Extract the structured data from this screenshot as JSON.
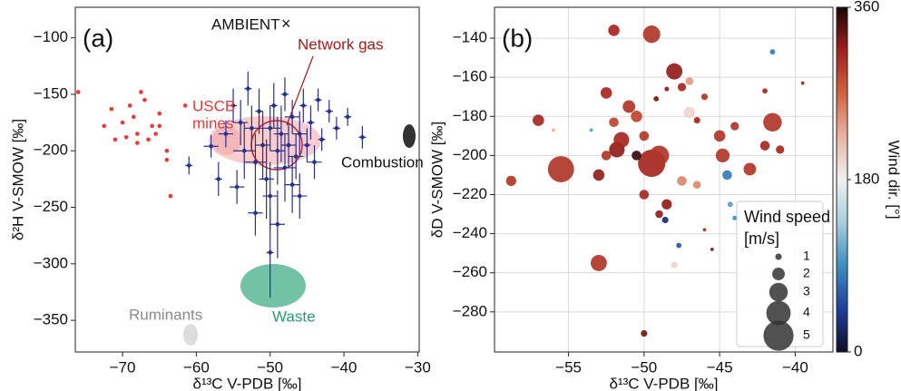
{
  "chart_data": [
    {
      "type": "scatter",
      "panel_label": "(a)",
      "xlabel": "δ¹³C V-PDB [‰]",
      "ylabel": "δ²H V-SMOW [‰]",
      "xlim": [
        -76.4,
        -29.8
      ],
      "ylim": [
        -378,
        -73
      ],
      "grid": false,
      "xticks": [
        {
          "value": -70,
          "label": "−70"
        },
        {
          "value": -60,
          "label": "−60"
        },
        {
          "value": -50,
          "label": "−50"
        },
        {
          "value": -40,
          "label": "−40"
        },
        {
          "value": -30,
          "label": "−30"
        }
      ],
      "yticks": [
        {
          "value": -100,
          "label": "−100"
        },
        {
          "value": -150,
          "label": "−150"
        },
        {
          "value": -200,
          "label": "−200"
        },
        {
          "value": -250,
          "label": "−250"
        },
        {
          "value": -300,
          "label": "−300"
        },
        {
          "value": -350,
          "label": "−350"
        }
      ],
      "legend_label": "AMBIENT",
      "annotations": [
        {
          "lines": [
            "Network gas"
          ],
          "color": "#a31b1b"
        },
        {
          "lines": [
            "USCB",
            "mines"
          ],
          "color": "#e8383a"
        },
        {
          "lines": [
            "Combustion"
          ],
          "color": "#111111"
        },
        {
          "lines": [
            "Waste"
          ],
          "color": "#2a9a70"
        },
        {
          "lines": [
            "Ruminants"
          ],
          "color": "#8a8a8a"
        }
      ],
      "series": [
        {
          "color": "#e8383a",
          "x": [
            -76,
            -72.5,
            -71.5,
            -71,
            -70,
            -69,
            -68.5,
            -68,
            -67.5,
            -67,
            -66.5,
            -66,
            -65,
            -65,
            -64,
            -64,
            -65.5,
            -63.5,
            -61.5,
            -69.5,
            -68
          ],
          "y": [
            -148,
            -178,
            -163,
            -190,
            -175,
            -160,
            -170,
            -185,
            -148,
            -155,
            -190,
            -178,
            -167,
            -178,
            -200,
            -208,
            -185,
            -240,
            -160,
            -188,
            -193
          ]
        },
        {
          "color": "#2b2f8c",
          "x": [
            -61,
            -58,
            -57,
            -56,
            -55,
            -54,
            -53.5,
            -53,
            -52.5,
            -52,
            -51.5,
            -51,
            -50.5,
            -50,
            -50,
            -49.5,
            -49,
            -49,
            -48.5,
            -48,
            -48,
            -47.5,
            -47,
            -47,
            -46.5,
            -46,
            -45.5,
            -45,
            -44.5,
            -44,
            -43.5,
            -43,
            -42,
            -41,
            -39.5,
            -37.5,
            -50,
            -54.5,
            -52,
            -46
          ],
          "y": [
            -213,
            -196,
            -225,
            -185,
            -160,
            -175,
            -200,
            -145,
            -180,
            -210,
            -165,
            -195,
            -225,
            -180,
            -240,
            -160,
            -200,
            -265,
            -185,
            -215,
            -150,
            -195,
            -170,
            -230,
            -205,
            -185,
            -160,
            -195,
            -175,
            -210,
            -155,
            -190,
            -165,
            -180,
            -170,
            -188,
            -290,
            -232,
            -255,
            -240
          ],
          "xerr": [
            0.5,
            1,
            0.5,
            1,
            0.5,
            1,
            1.5,
            0.5,
            1,
            1.5,
            0.5,
            1,
            1,
            1.5,
            1,
            0.5,
            1,
            1,
            1,
            1.5,
            0.5,
            1,
            1,
            1,
            1,
            1,
            0.5,
            0.5,
            0.5,
            1,
            0.5,
            0.5,
            0.5,
            0.5,
            0.5,
            0.5,
            0.5,
            1,
            1,
            1
          ],
          "yerr": [
            8,
            10,
            15,
            12,
            15,
            20,
            25,
            15,
            20,
            25,
            20,
            30,
            35,
            20,
            30,
            20,
            30,
            30,
            25,
            30,
            15,
            20,
            15,
            25,
            20,
            20,
            15,
            15,
            15,
            15,
            10,
            10,
            10,
            10,
            8,
            10,
            40,
            15,
            20,
            20
          ]
        }
      ]
    },
    {
      "type": "bubble",
      "panel_label": "(b)",
      "xlabel": "δ¹³C V-PDB [‰]",
      "ylabel": "δD V-SMOW [‰]",
      "xlim": [
        -59.9,
        -37.5
      ],
      "ylim": [
        -300.5,
        -124.2
      ],
      "grid": true,
      "xticks": [
        {
          "value": -55,
          "label": "−55"
        },
        {
          "value": -50,
          "label": "−50"
        },
        {
          "value": -45,
          "label": "−45"
        },
        {
          "value": -40,
          "label": "−40"
        }
      ],
      "yticks": [
        {
          "value": -140,
          "label": "−140"
        },
        {
          "value": -160,
          "label": "−160"
        },
        {
          "value": -180,
          "label": "−180"
        },
        {
          "value": -200,
          "label": "−200"
        },
        {
          "value": -220,
          "label": "−220"
        },
        {
          "value": -240,
          "label": "−240"
        },
        {
          "value": -260,
          "label": "−260"
        },
        {
          "value": -280,
          "label": "−280"
        }
      ],
      "colorbar": {
        "label": "Wind dir. [°]",
        "lim": [
          0,
          360
        ],
        "ticks": [
          0,
          180,
          360
        ]
      },
      "size_legend": {
        "title_lines": [
          "Wind speed",
          "[m/s]"
        ],
        "sizes": [
          1,
          2,
          3,
          4,
          5
        ]
      },
      "series": [
        {
          "x": [
            -52,
            -49.5,
            -48,
            -47,
            -58.8,
            -57,
            -55.5,
            -53,
            -50,
            -56,
            -52.5,
            -51,
            -50.5,
            -51.8,
            -53,
            -52,
            -52.5,
            -51.5,
            -50,
            -49.5,
            -49,
            -48.5,
            -50,
            -49,
            -48.6,
            -47.7,
            -48,
            -47.5,
            -47,
            -47.5,
            -46.5,
            -46,
            -45,
            -44.8,
            -44,
            -43,
            -42,
            -41.5,
            -41.5,
            -42,
            -41,
            -39.5,
            -37,
            -44.5,
            -44.3,
            -44,
            -45.5,
            -43.5,
            -48.5,
            -46.5,
            -53.5,
            -50.5,
            -46,
            -49.2
          ],
          "y": [
            -136,
            -138,
            -157,
            -162,
            -213,
            -182,
            -207,
            -255,
            -291,
            -187,
            -168,
            -175,
            -180,
            -197,
            -210,
            -183,
            -200,
            -192,
            -190,
            -204,
            -200,
            -225,
            -220,
            -230,
            -233,
            -246,
            -256,
            -213,
            -178,
            -165,
            -182,
            -170,
            -190,
            -200,
            -185,
            -207,
            -195,
            -183,
            -147,
            -167,
            -197,
            -163,
            -188,
            -210,
            -225,
            -232,
            -248,
            -248,
            -166,
            -215,
            -187,
            -200,
            -238,
            -171
          ],
          "size": [
            1.8,
            2.8,
            2.6,
            1.2,
            1.6,
            1.8,
            4.3,
            2.6,
            1,
            0.5,
            1.8,
            2,
            1.8,
            2.5,
            1.8,
            1.5,
            1.5,
            2.5,
            1.5,
            4.5,
            3.2,
            1.6,
            1.5,
            1.2,
            1,
            0.8,
            1,
            1.5,
            1.8,
            1.3,
            1,
            1,
            1.8,
            2.2,
            1.3,
            2,
            1.5,
            3,
            0.8,
            0.8,
            1.3,
            0.5,
            0.5,
            1.5,
            0.8,
            0.7,
            0.5,
            0.5,
            0.7,
            1.2,
            0.5,
            1.5,
            0.5,
            0.8
          ],
          "direction": [
            310,
            300,
            320,
            240,
            300,
            310,
            300,
            300,
            330,
            230,
            310,
            300,
            290,
            320,
            320,
            290,
            300,
            310,
            300,
            310,
            300,
            320,
            310,
            320,
            30,
            60,
            200,
            250,
            200,
            310,
            310,
            300,
            300,
            300,
            300,
            300,
            310,
            300,
            80,
            310,
            310,
            320,
            300,
            80,
            100,
            90,
            330,
            310,
            320,
            250,
            100,
            350,
            310,
            330
          ]
        }
      ]
    }
  ]
}
